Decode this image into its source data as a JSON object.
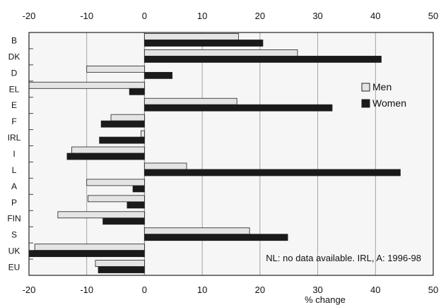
{
  "chart_data": {
    "type": "bar",
    "orientation": "horizontal",
    "categories": [
      "B",
      "DK",
      "D",
      "EL",
      "E",
      "F",
      "IRL",
      "I",
      "L",
      "A",
      "P",
      "FIN",
      "S",
      "UK",
      "EU"
    ],
    "series": [
      {
        "name": "Men",
        "color": "#e4e4e4",
        "values": [
          16.3,
          26.5,
          -10,
          -20,
          16,
          -5.8,
          -0.6,
          -12.6,
          7.3,
          -10,
          -9.8,
          -15,
          18.2,
          -19,
          -8.5
        ]
      },
      {
        "name": "Women",
        "color": "#1a1a1a",
        "values": [
          20.5,
          41,
          4.8,
          -2.6,
          32.5,
          -7.5,
          -7.8,
          -13.4,
          44.3,
          -2,
          -3,
          -7.2,
          24.8,
          -20,
          -8
        ]
      }
    ],
    "xlim": [
      -20,
      50
    ],
    "xticks": [
      -20,
      -10,
      0,
      10,
      20,
      30,
      40,
      50
    ],
    "tick_labels": [
      "-20",
      "-10",
      "0",
      "10",
      "20",
      "30",
      "40",
      "50"
    ],
    "xlabel": "% change",
    "grid": true,
    "legend_position": "right",
    "note": "NL: no data available. IRL, A: 1996-98"
  }
}
